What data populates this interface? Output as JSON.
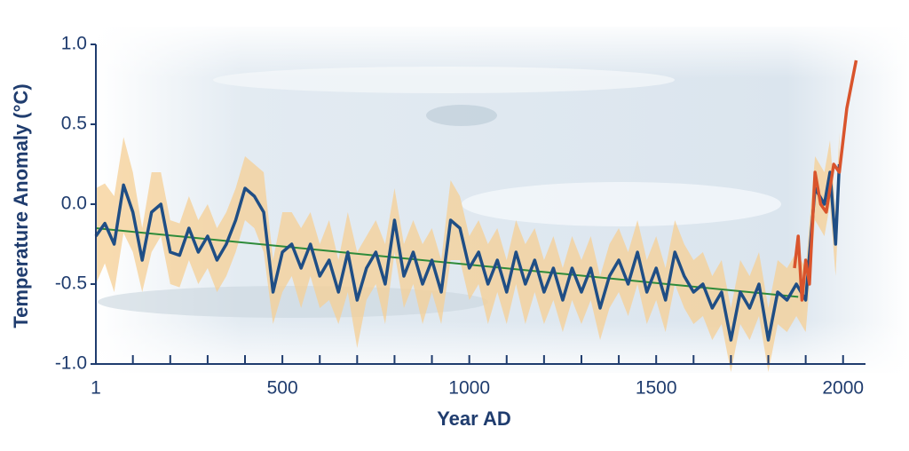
{
  "chart_data": {
    "type": "line",
    "xlabel": "Year AD",
    "ylabel": "Temperature Anomaly (°C)",
    "xlim": [
      1,
      2060
    ],
    "ylim": [
      -1,
      1
    ],
    "xticks": [
      1,
      500,
      1000,
      1500,
      2000
    ],
    "xminor_ticks": [
      100,
      200,
      300,
      400,
      600,
      700,
      800,
      900,
      1100,
      1200,
      1300,
      1400,
      1600,
      1700,
      1800,
      1900
    ],
    "yticks": [
      {
        "value": -1,
        "label": "-1.0"
      },
      -0.5,
      {
        "value": 0,
        "label": "0.0"
      },
      0.5,
      {
        "value": 1,
        "label": "1.0"
      }
    ],
    "series": [
      {
        "color": "#1f4e85",
        "band_color": "#f5cf94",
        "x": [
          1,
          25,
          50,
          75,
          100,
          125,
          150,
          175,
          200,
          225,
          250,
          275,
          300,
          325,
          350,
          375,
          400,
          425,
          450,
          475,
          500,
          525,
          550,
          575,
          600,
          625,
          650,
          675,
          700,
          725,
          750,
          775,
          800,
          825,
          850,
          875,
          900,
          925,
          950,
          975,
          1000,
          1025,
          1050,
          1075,
          1100,
          1125,
          1150,
          1175,
          1200,
          1225,
          1250,
          1275,
          1300,
          1325,
          1350,
          1375,
          1400,
          1425,
          1450,
          1475,
          1500,
          1525,
          1550,
          1575,
          1600,
          1625,
          1650,
          1675,
          1700,
          1725,
          1750,
          1775,
          1800,
          1825,
          1850,
          1875,
          1900,
          1925,
          1950,
          1965,
          1980,
          1990
        ],
        "values": [
          -0.2,
          -0.12,
          -0.25,
          0.12,
          -0.05,
          -0.35,
          -0.05,
          0.0,
          -0.3,
          -0.32,
          -0.15,
          -0.3,
          -0.2,
          -0.35,
          -0.25,
          -0.1,
          0.1,
          0.05,
          -0.05,
          -0.55,
          -0.3,
          -0.25,
          -0.4,
          -0.25,
          -0.45,
          -0.35,
          -0.55,
          -0.3,
          -0.6,
          -0.4,
          -0.3,
          -0.5,
          -0.1,
          -0.45,
          -0.3,
          -0.5,
          -0.35,
          -0.55,
          -0.1,
          -0.15,
          -0.4,
          -0.3,
          -0.5,
          -0.35,
          -0.55,
          -0.3,
          -0.5,
          -0.35,
          -0.55,
          -0.4,
          -0.6,
          -0.4,
          -0.55,
          -0.4,
          -0.65,
          -0.45,
          -0.35,
          -0.5,
          -0.3,
          -0.55,
          -0.4,
          -0.6,
          -0.3,
          -0.45,
          -0.55,
          -0.5,
          -0.65,
          -0.55,
          -0.85,
          -0.55,
          -0.65,
          -0.5,
          -0.85,
          -0.55,
          -0.6,
          -0.5,
          -0.6,
          0.1,
          0.0,
          0.2,
          -0.25,
          0.25
        ],
        "error": [
          0.3,
          0.25,
          0.3,
          0.3,
          0.25,
          0.2,
          0.25,
          0.2,
          0.2,
          0.2,
          0.2,
          0.2,
          0.2,
          0.2,
          0.2,
          0.2,
          0.2,
          0.2,
          0.25,
          0.2,
          0.25,
          0.2,
          0.25,
          0.2,
          0.2,
          0.25,
          0.2,
          0.25,
          0.3,
          0.2,
          0.2,
          0.25,
          0.2,
          0.2,
          0.2,
          0.25,
          0.2,
          0.2,
          0.25,
          0.2,
          0.2,
          0.2,
          0.25,
          0.2,
          0.2,
          0.2,
          0.25,
          0.2,
          0.2,
          0.2,
          0.2,
          0.2,
          0.2,
          0.2,
          0.2,
          0.2,
          0.2,
          0.2,
          0.2,
          0.2,
          0.2,
          0.2,
          0.2,
          0.2,
          0.2,
          0.2,
          0.2,
          0.2,
          0.2,
          0.2,
          0.2,
          0.2,
          0.2,
          0.2,
          0.2,
          0.2,
          0.2,
          0.2,
          0.2,
          0.2,
          0.2,
          0.2
        ]
      },
      {
        "color": "#d9542c",
        "x": [
          1870,
          1880,
          1890,
          1900,
          1910,
          1925,
          1940,
          1955,
          1975,
          1990,
          2010,
          2035
        ],
        "values": [
          -0.4,
          -0.2,
          -0.6,
          -0.35,
          -0.5,
          0.2,
          0.0,
          -0.05,
          0.25,
          0.2,
          0.6,
          0.9
        ]
      }
    ],
    "trend": {
      "color": "#2e8b3a",
      "x": [
        1,
        1880
      ],
      "values": [
        -0.15,
        -0.58
      ]
    }
  }
}
